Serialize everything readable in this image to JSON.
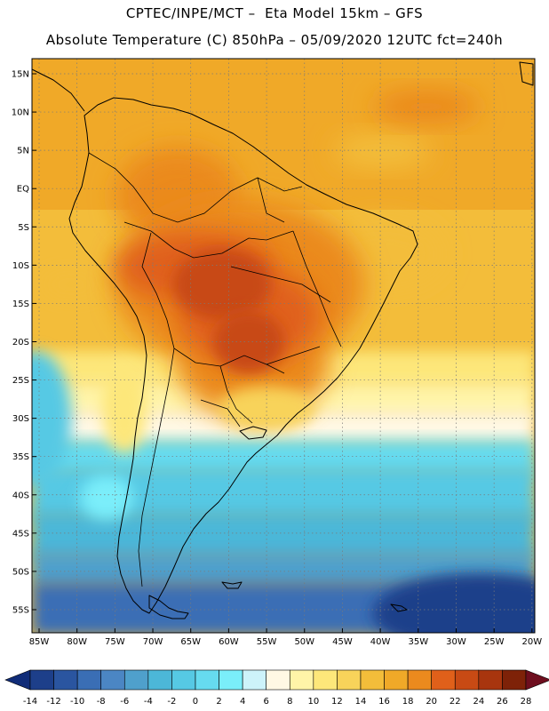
{
  "header": {
    "line1": "CPTEC/INPE/MCT –  Eta Model 15km – GFS",
    "line2": "Absolute Temperature (C) 850hPa – 05/09/2020 12UTC fct=240h"
  },
  "map": {
    "lat_labels": [
      "15N",
      "10N",
      "5N",
      "EQ",
      "5S",
      "10S",
      "15S",
      "20S",
      "25S",
      "30S",
      "35S",
      "40S",
      "45S",
      "50S",
      "55S"
    ],
    "lon_labels": [
      "85W",
      "80W",
      "75W",
      "70W",
      "65W",
      "60W",
      "55W",
      "50W",
      "45W",
      "40W",
      "35W",
      "30W",
      "25W",
      "20W"
    ]
  },
  "colorbar": {
    "ticks": [
      "-14",
      "-12",
      "-10",
      "-8",
      "-6",
      "-4",
      "-2",
      "0",
      "2",
      "4",
      "6",
      "8",
      "10",
      "12",
      "14",
      "16",
      "18",
      "20",
      "22",
      "24",
      "26",
      "28"
    ],
    "colors": [
      "#1d3f8a",
      "#2a55a0",
      "#3a6eb5",
      "#4b86c4",
      "#4fa0cc",
      "#4cb7d8",
      "#56c9e4",
      "#66dbef",
      "#7aeefa",
      "#cdf3fa",
      "#fff8e4",
      "#fff4a8",
      "#fde77a",
      "#f8d35a",
      "#f3bd3a",
      "#f0a928",
      "#eb8a1e",
      "#e0601a",
      "#c84a14",
      "#a8350e",
      "#7e2208"
    ],
    "under_color": "#102c78",
    "over_color": "#6e0e1e"
  }
}
